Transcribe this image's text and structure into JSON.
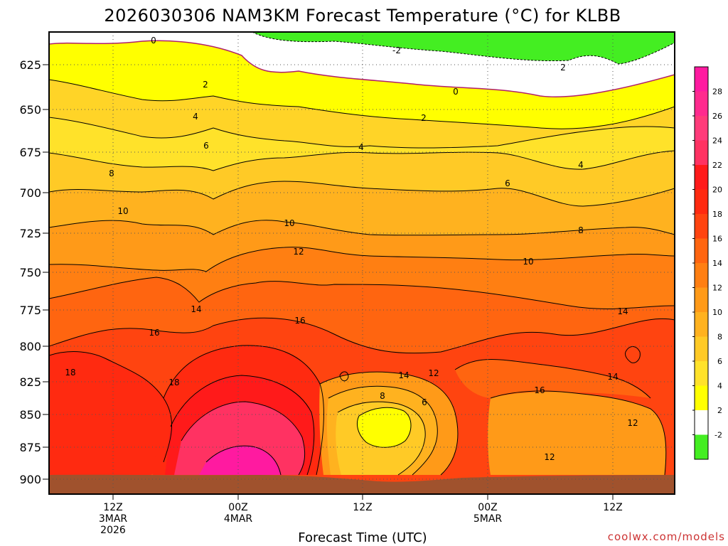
{
  "chart_data": {
    "type": "heatmap",
    "title": "2026030306 NAM3KM Forecast Temperature (°C) for KLBB",
    "xlabel": "Forecast Time (UTC)",
    "ylabel": "",
    "y_ticks": [
      "625",
      "650",
      "675",
      "700",
      "725",
      "750",
      "775",
      "800",
      "825",
      "850",
      "875",
      "900"
    ],
    "x_ticks": [
      {
        "label": "12Z",
        "sub1": "3MAR",
        "sub2": "2026"
      },
      {
        "label": "00Z",
        "sub1": "4MAR",
        "sub2": ""
      },
      {
        "label": "12Z",
        "sub1": "",
        "sub2": ""
      },
      {
        "label": "00Z",
        "sub1": "5MAR",
        "sub2": ""
      },
      {
        "label": "12Z",
        "sub1": "",
        "sub2": ""
      }
    ],
    "colorbar": {
      "labels": [
        "28",
        "26",
        "24",
        "22",
        "20",
        "18",
        "16",
        "14",
        "12",
        "10",
        "8",
        "6",
        "4",
        "2",
        "-2"
      ],
      "colors": [
        "#ff1aa0",
        "#ff2a8e",
        "#ff3b7a",
        "#ff3262",
        "#ff1a1a",
        "#ff2a10",
        "#ff4410",
        "#ff6510",
        "#ff7f12",
        "#ff9a18",
        "#ffb21f",
        "#ffca26",
        "#ffe22a",
        "#ffff00",
        "#ffffff",
        "#44ee22"
      ]
    },
    "contour_labels": [
      "0",
      "-2",
      "0",
      "2",
      "2",
      "4",
      "4",
      "2",
      "6",
      "4",
      "8",
      "6",
      "10",
      "10",
      "8",
      "12",
      "10",
      "14",
      "14",
      "16",
      "16",
      "18",
      "18",
      "14",
      "12",
      "8",
      "6",
      "16",
      "14",
      "12",
      "12"
    ],
    "ground_color": "#a0522d",
    "grid": true
  },
  "credit": "coolwx.com/models"
}
